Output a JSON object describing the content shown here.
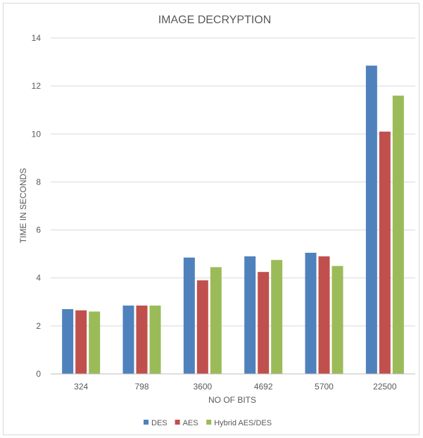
{
  "chart_data": {
    "type": "bar",
    "title": "IMAGE DECRYPTION",
    "xlabel": "NO OF BITS",
    "ylabel": "TIME IN SECONDS",
    "categories": [
      "324",
      "798",
      "3600",
      "4692",
      "5700",
      "22500"
    ],
    "series": [
      {
        "name": "DES",
        "color": "#4f81bd",
        "values": [
          2.7,
          2.85,
          4.85,
          4.9,
          5.05,
          12.85
        ]
      },
      {
        "name": "AES",
        "color": "#c0504d",
        "values": [
          2.65,
          2.85,
          3.9,
          4.25,
          4.9,
          10.1
        ]
      },
      {
        "name": "Hybrid AES/DES",
        "color": "#9bbb59",
        "values": [
          2.6,
          2.85,
          4.45,
          4.75,
          4.5,
          11.6
        ]
      }
    ],
    "ylim": [
      0,
      14
    ],
    "yticks": [
      0,
      2,
      4,
      6,
      8,
      10,
      12,
      14
    ],
    "grid": true,
    "legend_position": "bottom"
  }
}
